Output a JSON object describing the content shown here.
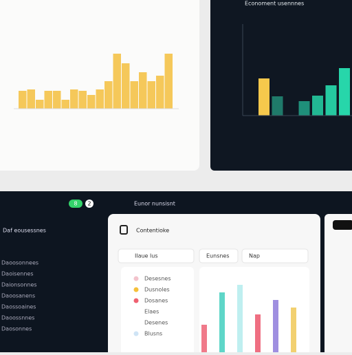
{
  "top_left": {
    "bars": [
      26,
      28,
      13,
      26,
      26,
      13,
      28,
      26,
      20,
      28,
      40,
      80,
      66,
      40,
      53,
      40,
      48,
      80
    ]
  },
  "top_right": {
    "title": "Economent usennnes",
    "bars": [
      {
        "value": 54,
        "color": "#f5c84c"
      },
      {
        "value": 28,
        "color": "#1f7a6a"
      },
      {
        "value": null,
        "color": "#1f7a6a"
      },
      {
        "value": 21,
        "color": "#1f8f7a"
      },
      {
        "value": 29,
        "color": "#22b893"
      },
      {
        "value": 44,
        "color": "#25c9a0"
      },
      {
        "value": 69,
        "color": "#27d6aa"
      }
    ]
  },
  "bottom": {
    "badge": "8",
    "count": "2",
    "sidebar_title": "Daf eousessnes",
    "sidebar_items": [
      "Daoosonnees",
      "Daoisennes",
      "Daionsonnes",
      "Daoosanens",
      "Daossoaines",
      "Daoossnnes",
      "Daosonnes"
    ],
    "header_title": "Eunor nunsisnt",
    "card_title": "Contentioke",
    "chips": [
      "Ilaue lus",
      "Eunsnes",
      "Nap"
    ],
    "list": [
      "Desesnes",
      "Dusnoles",
      "Dosanes",
      "Elaes",
      "Desenes",
      "Blusns"
    ],
    "bars": [
      {
        "value": 40,
        "color": "#f07a8a"
      },
      {
        "value": 87,
        "color": "#5fd6c8"
      },
      {
        "value": 98,
        "color": "#bfeff0"
      },
      {
        "value": 55,
        "color": "#ef6f82"
      },
      {
        "value": 76,
        "color": "#9f8fe0"
      },
      {
        "value": 65,
        "color": "#f2d070"
      }
    ]
  }
}
